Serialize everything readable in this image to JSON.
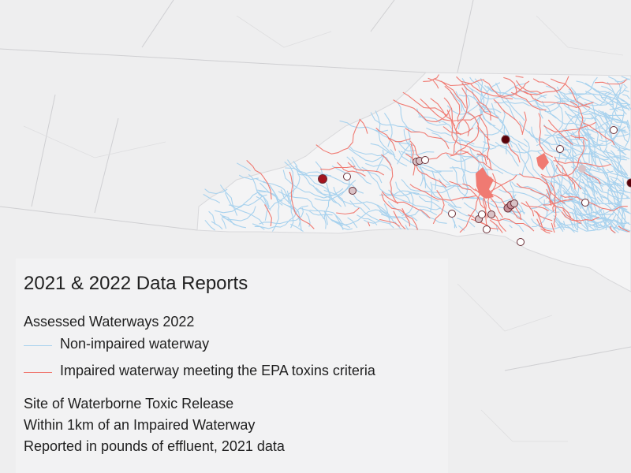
{
  "legend": {
    "title": "2021 & 2022 Data Reports",
    "waterways_heading": "Assessed Waterways 2022",
    "items": [
      {
        "label": "Non-impaired waterway",
        "color": "#a8d2ee"
      },
      {
        "label": "Impaired waterway meeting the EPA toxins criteria",
        "color": "#f07a72"
      }
    ],
    "sites_lines": [
      "Site of Waterborne Toxic Release",
      "Within 1km of an Impaired Waterway",
      "Reported in pounds of effluent, 2021 data"
    ]
  },
  "colors": {
    "background": "#eeeeef",
    "state_fill": "#f4f4f5",
    "border": "#cfcfd2",
    "non_impaired": "#a8d2ee",
    "impaired": "#f07a72",
    "site_dark": "#5a0008",
    "site_mid": "#a4131d",
    "site_light": "#d9c2c6",
    "site_white": "#ffffff"
  }
}
